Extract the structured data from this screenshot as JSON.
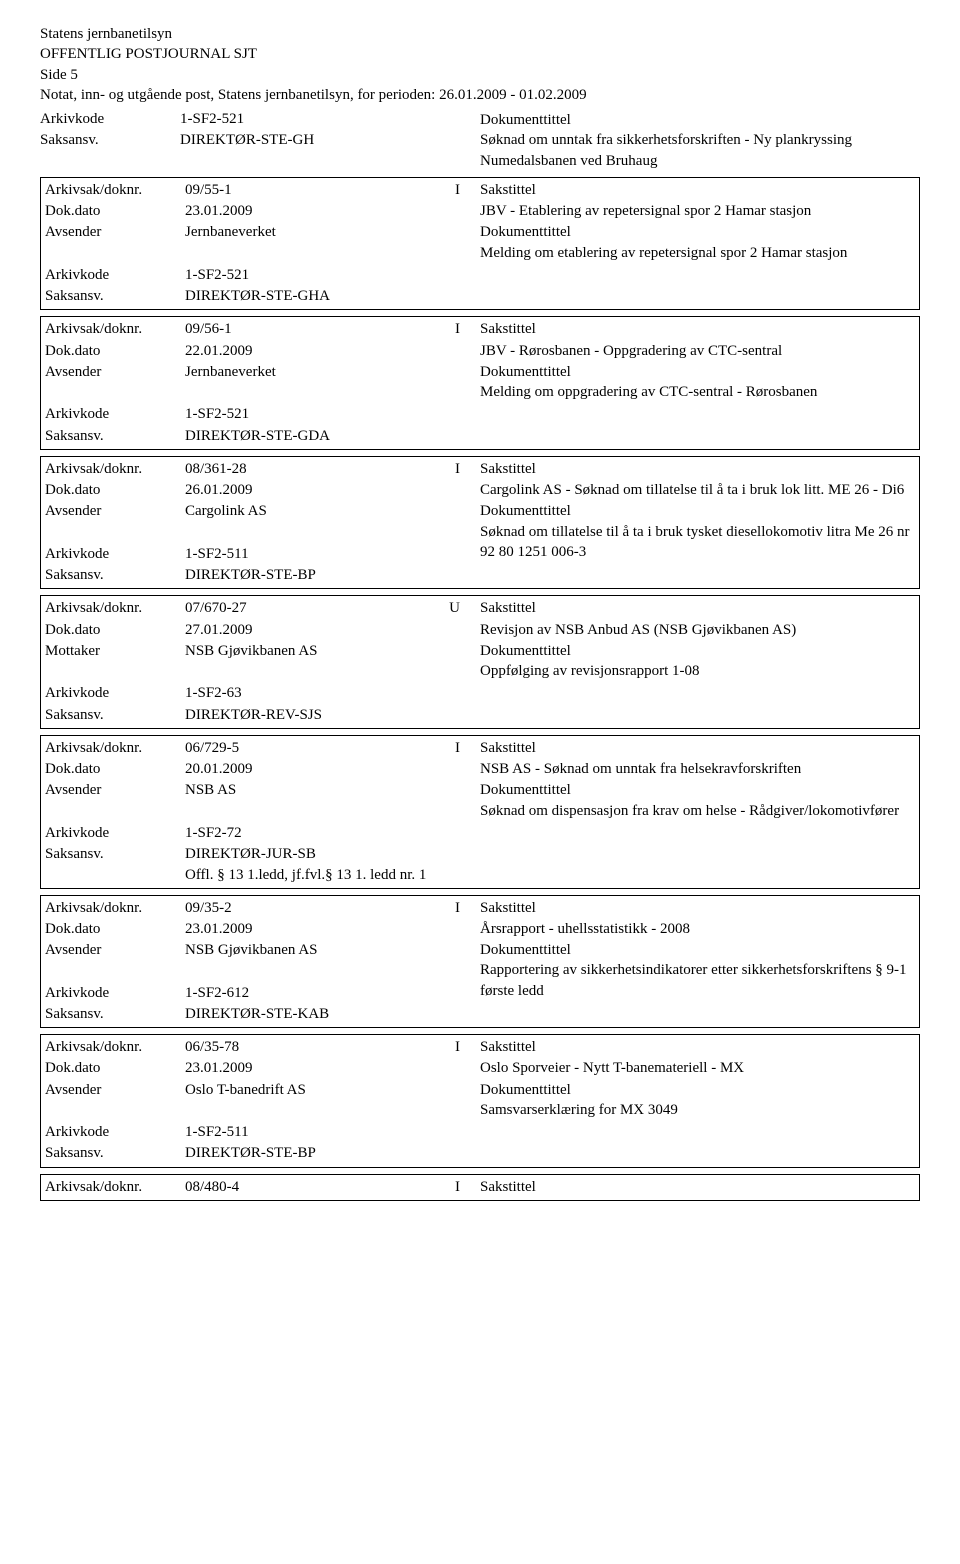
{
  "header": {
    "org": "Statens jernbanetilsyn",
    "title": "OFFENTLIG POSTJOURNAL SJT",
    "side": "Side 5",
    "period": "Notat, inn- og utgående post, Statens jernbanetilsyn, for perioden: 26.01.2009 - 01.02.2009"
  },
  "labels": {
    "arkivsak": "Arkivsak/doknr.",
    "dokdato": "Dok.dato",
    "avsender": "Avsender",
    "mottaker": "Mottaker",
    "arkivkode": "Arkivkode",
    "saksansv": "Saksansv.",
    "sakstittel": "Sakstittel",
    "dokumenttittel": "Dokumenttittel"
  },
  "topBlock": {
    "arkivkode": "1-SF2-521",
    "saksansv": "DIREKTØR-STE-GH",
    "dokumenttittel_label": "Dokumenttittel",
    "dokumenttittel": "Søknad om unntak fra sikkerhetsforskriften - Ny plankryssing Numedalsbanen ved Bruhaug"
  },
  "records": [
    {
      "saksnr": "09/55-1",
      "type": "I",
      "dokdato": "23.01.2009",
      "partyLabel": "Avsender",
      "party": "Jernbaneverket",
      "arkivkode": "1-SF2-521",
      "saksansv": "DIREKTØR-STE-GHA",
      "sakstittel": "JBV - Etablering av repetersignal spor 2 Hamar stasjon",
      "dokumenttittel": "Melding om etablering av repetersignal spor 2 Hamar stasjon",
      "offl": ""
    },
    {
      "saksnr": "09/56-1",
      "type": "I",
      "dokdato": "22.01.2009",
      "partyLabel": "Avsender",
      "party": "Jernbaneverket",
      "arkivkode": "1-SF2-521",
      "saksansv": "DIREKTØR-STE-GDA",
      "sakstittel": "JBV - Rørosbanen - Oppgradering av CTC-sentral",
      "dokumenttittel": "Melding om oppgradering av CTC-sentral - Rørosbanen",
      "offl": ""
    },
    {
      "saksnr": "08/361-28",
      "type": "I",
      "dokdato": "26.01.2009",
      "partyLabel": "Avsender",
      "party": "Cargolink AS",
      "arkivkode": "1-SF2-511",
      "saksansv": "DIREKTØR-STE-BP",
      "sakstittel": "Cargolink AS - Søknad om tillatelse til å ta i bruk lok litt. ME 26 - Di6",
      "dokumenttittel": "Søknad om tillatelse til å ta i bruk tysket diesellokomotiv litra Me 26 nr 92 80 1251 006-3",
      "offl": ""
    },
    {
      "saksnr": "07/670-27",
      "type": "U",
      "dokdato": "27.01.2009",
      "partyLabel": "Mottaker",
      "party": "NSB Gjøvikbanen AS",
      "arkivkode": "1-SF2-63",
      "saksansv": "DIREKTØR-REV-SJS",
      "sakstittel": "Revisjon av NSB Anbud AS (NSB Gjøvikbanen AS)",
      "dokumenttittel": "Oppfølging av revisjonsrapport 1-08",
      "offl": ""
    },
    {
      "saksnr": "06/729-5",
      "type": "I",
      "dokdato": "20.01.2009",
      "partyLabel": "Avsender",
      "party": "NSB AS",
      "arkivkode": "1-SF2-72",
      "saksansv": "DIREKTØR-JUR-SB",
      "sakstittel": "NSB AS - Søknad om unntak fra helsekravforskriften",
      "dokumenttittel": "Søknad om dispensasjon fra krav om helse - Rådgiver/lokomotivfører",
      "offl": "Offl. § 13 1.ledd, jf.fvl.§ 13 1. ledd nr. 1"
    },
    {
      "saksnr": "09/35-2",
      "type": "I",
      "dokdato": "23.01.2009",
      "partyLabel": "Avsender",
      "party": "NSB Gjøvikbanen AS",
      "arkivkode": "1-SF2-612",
      "saksansv": "DIREKTØR-STE-KAB",
      "sakstittel": "Årsrapport - uhellsstatistikk - 2008",
      "dokumenttittel": "Rapportering av sikkerhetsindikatorer etter sikkerhetsforskriftens § 9-1 første ledd",
      "offl": ""
    },
    {
      "saksnr": "06/35-78",
      "type": "I",
      "dokdato": "23.01.2009",
      "partyLabel": "Avsender",
      "party": "Oslo T-banedrift AS",
      "arkivkode": "1-SF2-511",
      "saksansv": "DIREKTØR-STE-BP",
      "sakstittel": "Oslo Sporveier - Nytt T-banemateriell - MX",
      "dokumenttittel": "Samsvarserklæring for MX 3049",
      "offl": ""
    }
  ],
  "lastRow": {
    "saksnr": "08/480-4",
    "type": "I"
  }
}
